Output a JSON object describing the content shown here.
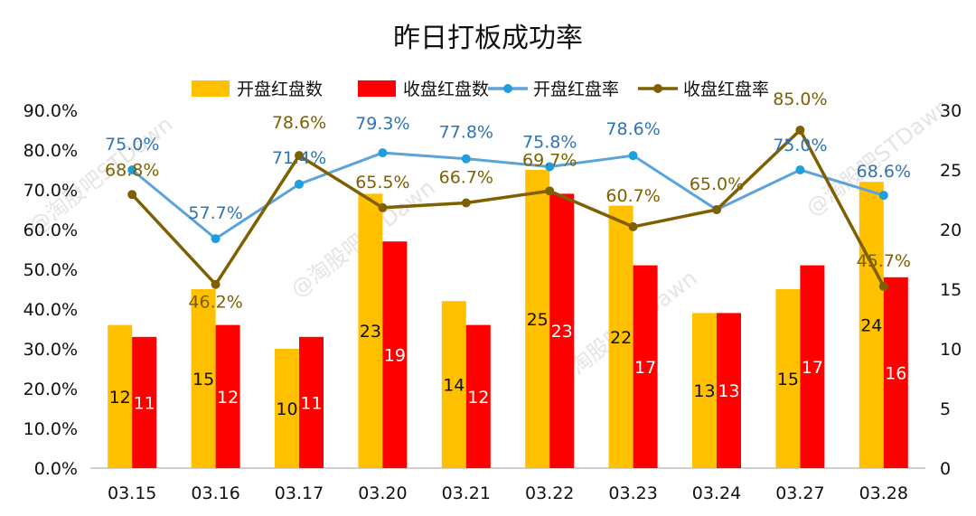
{
  "chart_data": {
    "type": "bar",
    "title": "昨日打板成功率",
    "categories": [
      "03.15",
      "03.16",
      "03.17",
      "03.20",
      "03.21",
      "03.22",
      "03.23",
      "03.24",
      "03.27",
      "03.28"
    ],
    "series": [
      {
        "name": "开盘红盘数",
        "kind": "bar",
        "axis": "right",
        "color": "#ffc000",
        "values": [
          12,
          15,
          10,
          23,
          14,
          25,
          22,
          13,
          15,
          24
        ]
      },
      {
        "name": "收盘红盘数",
        "kind": "bar",
        "axis": "right",
        "color": "#ff0000",
        "values": [
          11,
          12,
          11,
          19,
          12,
          23,
          17,
          13,
          17,
          16
        ]
      },
      {
        "name": "开盘红盘率",
        "kind": "line",
        "axis": "left",
        "color": "#5ba3d9",
        "values": [
          75.0,
          57.7,
          71.4,
          79.3,
          77.8,
          75.8,
          78.6,
          65.0,
          75.0,
          68.6
        ],
        "labels": [
          "75.0%",
          "57.7%",
          "71.4%",
          "79.3%",
          "77.8%",
          "75.8%",
          "78.6%",
          "",
          "75.0%",
          "68.6%"
        ]
      },
      {
        "name": "收盘红盘率",
        "kind": "line",
        "axis": "left",
        "color": "#7f6000",
        "values": [
          68.8,
          46.2,
          78.6,
          65.5,
          66.7,
          69.7,
          60.7,
          65.0,
          85.0,
          45.7
        ],
        "labels": [
          "68.8%",
          "46.2%",
          "78.6%",
          "65.5%",
          "66.7%",
          "69.7%",
          "60.7%",
          "65.0%",
          "85.0%",
          "45.7%"
        ]
      }
    ],
    "y_left": {
      "range": [
        0,
        90
      ],
      "ticks": [
        "0.0%",
        "10.0%",
        "20.0%",
        "30.0%",
        "40.0%",
        "50.0%",
        "60.0%",
        "70.0%",
        "80.0%",
        "90.0%"
      ]
    },
    "y_right": {
      "range": [
        0,
        30
      ],
      "ticks": [
        "0",
        "5",
        "10",
        "15",
        "20",
        "25",
        "30"
      ]
    },
    "legend_position": "top",
    "grid": false
  },
  "watermark": "@淘股吧STDawn"
}
